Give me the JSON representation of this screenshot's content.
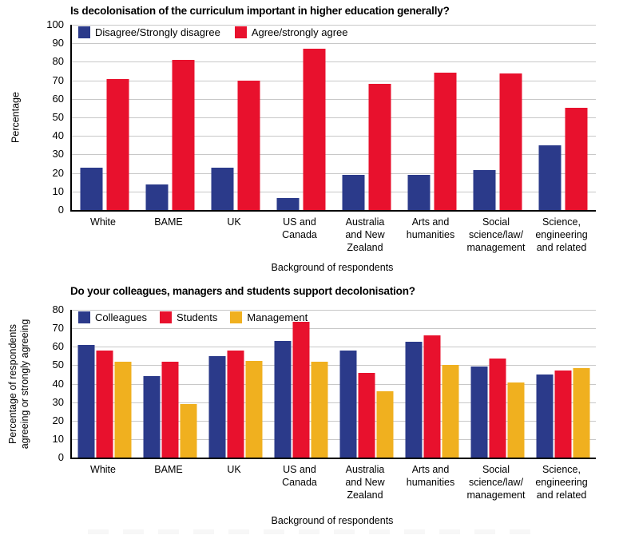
{
  "figure": {
    "background": "#ffffff",
    "gridline_color": "#c8c8c8",
    "axis_color": "#000000"
  },
  "chart_data": [
    {
      "type": "bar",
      "title": "Is decolonisation of the curriculum important in higher education generally?",
      "ylabel": "Percentage",
      "ylabel_lines": [
        "Percentage"
      ],
      "xlabel": "Background of respondents",
      "ylim": [
        0,
        100
      ],
      "ytick_step": 10,
      "grid": true,
      "legend_position": "top-left-inside",
      "categories": [
        "White",
        "BAME",
        "UK",
        "US and Canada",
        "Australia and New Zealand",
        "Arts and humanities",
        "Social science/law/management",
        "Science, engineering and related"
      ],
      "categories_lines": [
        [
          "White"
        ],
        [
          "BAME"
        ],
        [
          "UK"
        ],
        [
          "US and",
          "Canada"
        ],
        [
          "Australia",
          "and New",
          "Zealand"
        ],
        [
          "Arts and",
          "humanities"
        ],
        [
          "Social",
          "science/law/",
          "management"
        ],
        [
          "Science,",
          "engineering",
          "and related"
        ]
      ],
      "series": [
        {
          "name": "Disagree/Strongly disagree",
          "color": "#2b3a8a",
          "values": [
            23,
            14,
            23,
            6.5,
            19,
            19,
            21.5,
            35
          ]
        },
        {
          "name": "Agree/strongly agree",
          "color": "#e8112d",
          "values": [
            70.5,
            81,
            70,
            87,
            68,
            74,
            73.5,
            55
          ]
        }
      ]
    },
    {
      "type": "bar",
      "title": "Do your colleagues, managers and students support decolonisation?",
      "ylabel": "Percentage of respondents agreeing or strongly agreeing",
      "ylabel_lines": [
        "Percentage of respondents",
        "agreeing or strongly agreeing"
      ],
      "xlabel": "Background of respondents",
      "ylim": [
        0,
        80
      ],
      "ytick_step": 10,
      "grid": true,
      "legend_position": "top-left-inside",
      "categories": [
        "White",
        "BAME",
        "UK",
        "US and Canada",
        "Australia and New Zealand",
        "Arts and humanities",
        "Social science/law/management",
        "Science, engineering and related"
      ],
      "categories_lines": [
        [
          "White"
        ],
        [
          "BAME"
        ],
        [
          "UK"
        ],
        [
          "US and",
          "Canada"
        ],
        [
          "Australia",
          "and New",
          "Zealand"
        ],
        [
          "Arts and",
          "humanities"
        ],
        [
          "Social",
          "science/law/",
          "management"
        ],
        [
          "Science,",
          "engineering",
          "and related"
        ]
      ],
      "series": [
        {
          "name": "Colleagues",
          "color": "#2b3a8a",
          "values": [
            61,
            44,
            55,
            63,
            58,
            62.5,
            49.5,
            45
          ]
        },
        {
          "name": "Students",
          "color": "#e8112d",
          "values": [
            58,
            52,
            58,
            73.5,
            46,
            66,
            53.5,
            47
          ]
        },
        {
          "name": "Management",
          "color": "#f0b01f",
          "values": [
            52,
            29,
            52.5,
            52,
            36,
            50,
            40.5,
            48.5
          ]
        }
      ]
    }
  ]
}
